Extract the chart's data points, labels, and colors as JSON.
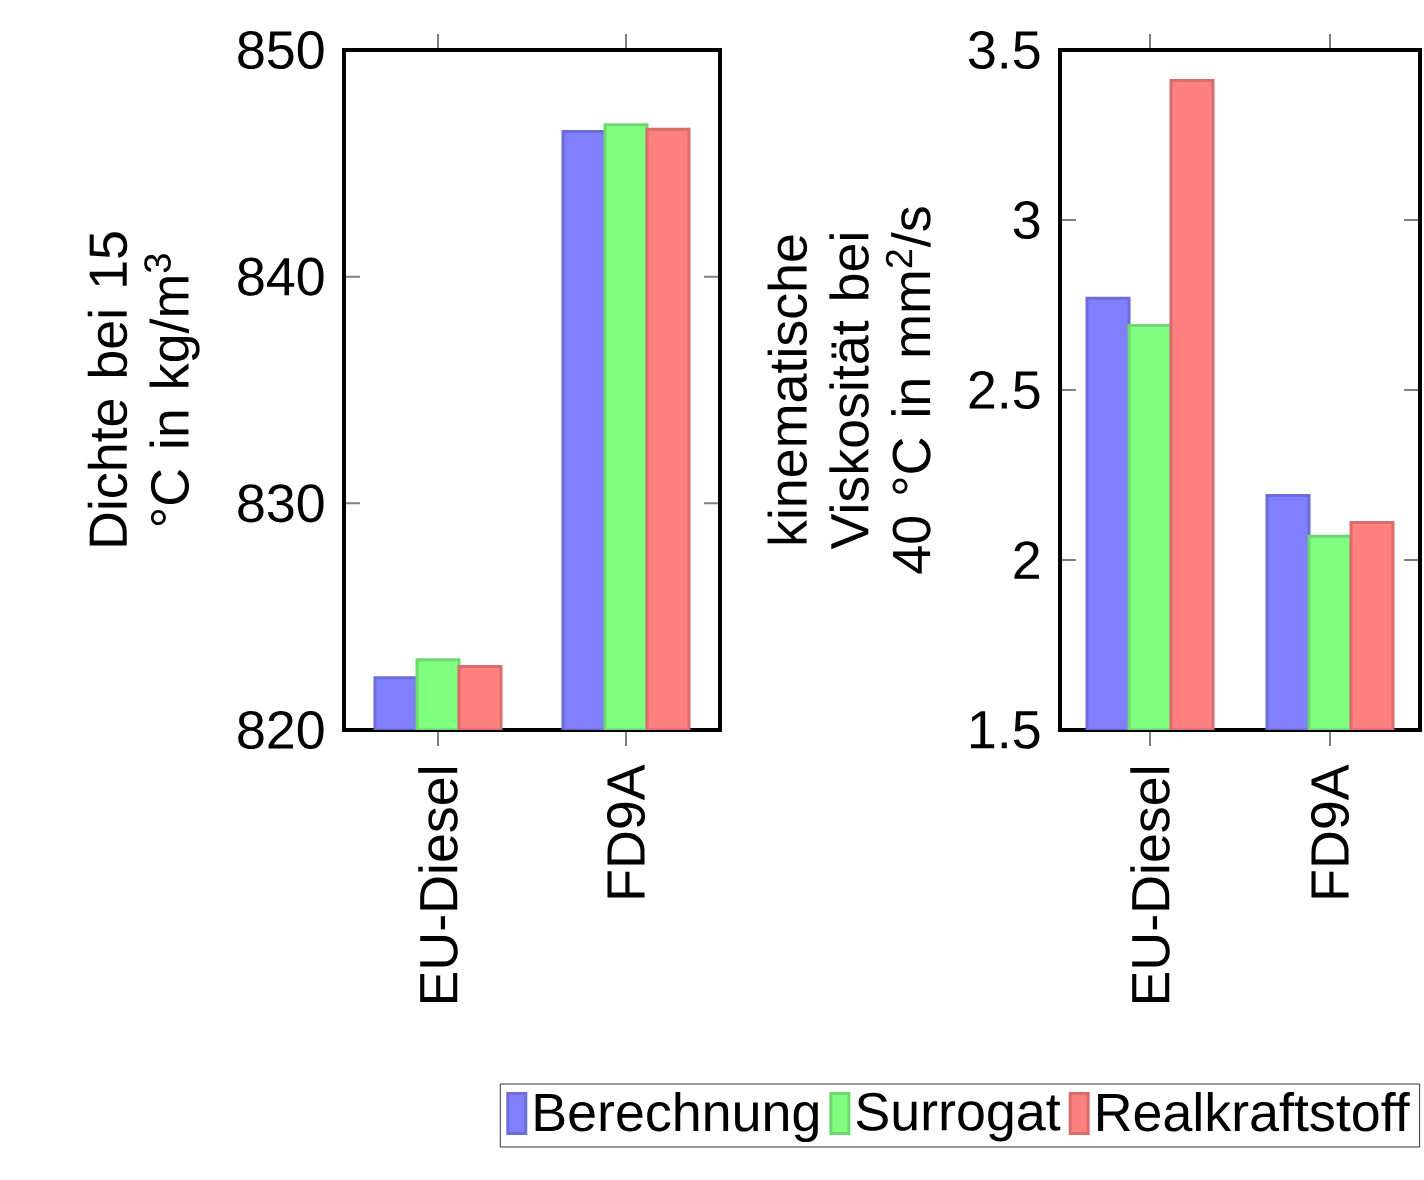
{
  "chart_data": [
    {
      "type": "bar",
      "ylabel": "Dichte bei 15 °C in kg/m$^{3}$",
      "categories": [
        "EU-Diesel",
        "FD9A"
      ],
      "ylim": [
        820,
        850
      ],
      "yticks": [
        820,
        830,
        840,
        850
      ],
      "series": [
        {
          "color": "#8080ff",
          "values": [
            822.3,
            846.4
          ]
        },
        {
          "color": "#80ff80",
          "values": [
            823.1,
            846.7
          ]
        },
        {
          "color": "#ff8080",
          "values": [
            822.8,
            846.5
          ]
        }
      ]
    },
    {
      "type": "bar",
      "ylabel": "kinematische Viskosität bei 40 °C in mm$^{2}$/s",
      "categories": [
        "EU-Diesel",
        "FD9A"
      ],
      "ylim": [
        1.5,
        3.5
      ],
      "yticks": [
        1.5,
        2,
        2.5,
        3,
        3.5
      ],
      "legend": "bottom",
      "series": [
        {
          "name": "Berechnung",
          "color": "#8080ff",
          "values": [
            2.77,
            2.19
          ]
        },
        {
          "name": "Surrogat",
          "color": "#80ff80",
          "values": [
            2.69,
            2.07
          ]
        },
        {
          "name": "Realkraftstoff",
          "color": "#ff8080",
          "values": [
            3.41,
            2.11
          ]
        }
      ]
    }
  ]
}
